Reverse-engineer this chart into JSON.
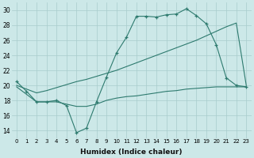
{
  "xlabel": "Humidex (Indice chaleur)",
  "ylabel": "",
  "background_color": "#cce8e8",
  "line_color": "#2d7a6e",
  "xlim": [
    -0.5,
    23.5
  ],
  "ylim": [
    13,
    31
  ],
  "yticks": [
    14,
    16,
    18,
    20,
    22,
    24,
    26,
    28,
    30
  ],
  "xticks": [
    0,
    1,
    2,
    3,
    4,
    5,
    6,
    7,
    8,
    9,
    10,
    11,
    12,
    13,
    14,
    15,
    16,
    17,
    18,
    19,
    20,
    21,
    22,
    23
  ],
  "line1_x": [
    0,
    1,
    2,
    3,
    4,
    5,
    6,
    7,
    8,
    9,
    10,
    11,
    12,
    13,
    14,
    15,
    16,
    17,
    18,
    19,
    20,
    21,
    22,
    23
  ],
  "line1_y": [
    20.5,
    19.2,
    17.8,
    17.8,
    18.0,
    17.3,
    13.7,
    14.3,
    17.8,
    21.1,
    24.3,
    26.4,
    29.2,
    29.2,
    29.1,
    29.4,
    29.5,
    30.2,
    29.3,
    28.2,
    25.4,
    21.0,
    20.0,
    19.8
  ],
  "line2_x": [
    0,
    1,
    2,
    3,
    4,
    5,
    6,
    7,
    8,
    9,
    10,
    11,
    12,
    13,
    14,
    15,
    16,
    17,
    18,
    19,
    20,
    21,
    22,
    23
  ],
  "line2_y": [
    19.8,
    18.8,
    17.8,
    17.8,
    17.8,
    17.5,
    17.2,
    17.2,
    17.5,
    18.0,
    18.3,
    18.5,
    18.6,
    18.8,
    19.0,
    19.2,
    19.3,
    19.5,
    19.6,
    19.7,
    19.8,
    19.8,
    19.8,
    19.8
  ],
  "line3_x": [
    0,
    1,
    2,
    3,
    4,
    5,
    6,
    7,
    8,
    9,
    10,
    11,
    12,
    13,
    14,
    15,
    16,
    17,
    18,
    19,
    20,
    21,
    22,
    23
  ],
  "line3_y": [
    20.0,
    19.5,
    19.0,
    19.3,
    19.7,
    20.1,
    20.5,
    20.8,
    21.2,
    21.6,
    22.0,
    22.5,
    23.0,
    23.5,
    24.0,
    24.5,
    25.0,
    25.5,
    26.0,
    26.6,
    27.2,
    27.8,
    28.3,
    20.0
  ]
}
